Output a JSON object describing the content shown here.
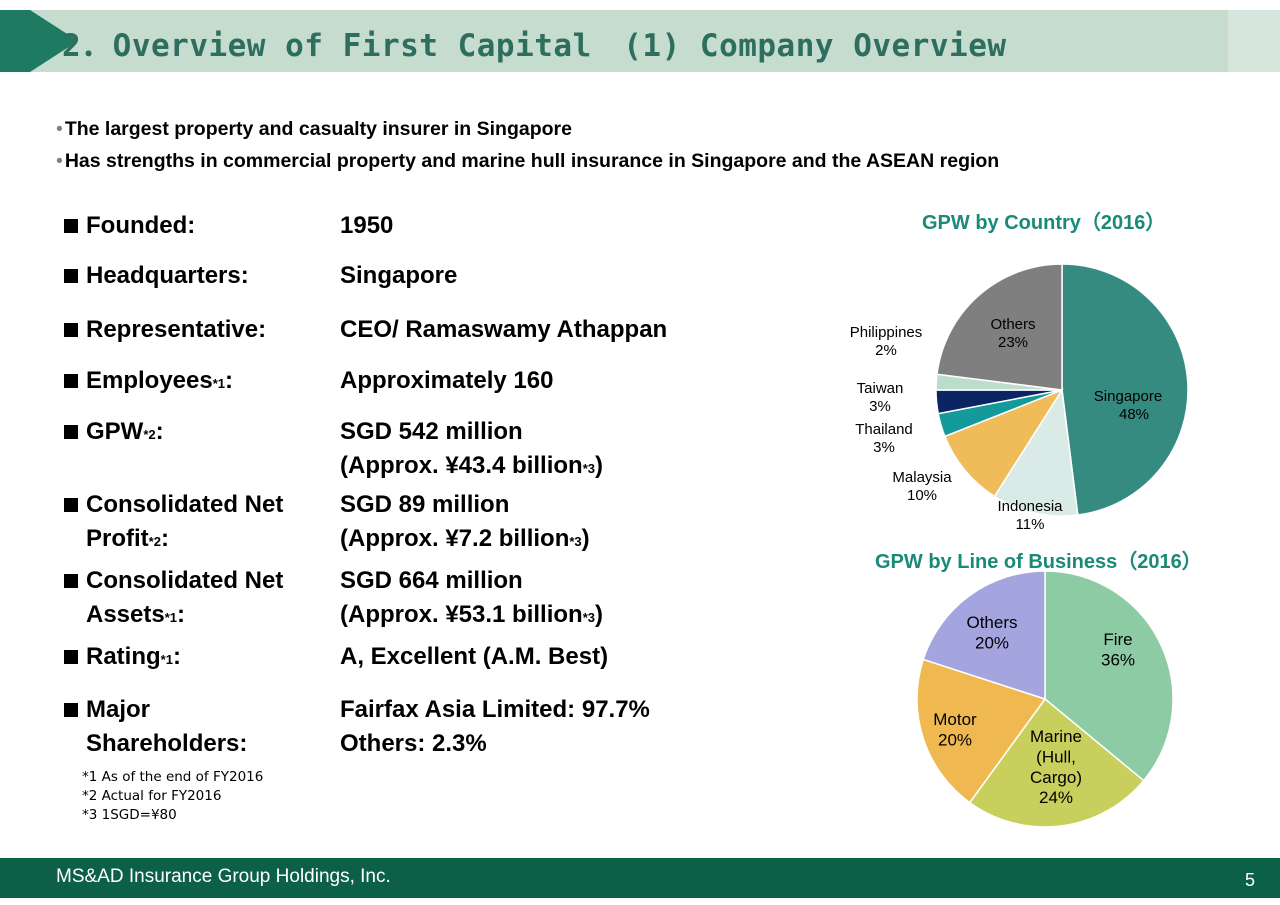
{
  "header": {
    "title": "2．Overview of First Capital　(1) Company Overview"
  },
  "bullets": [
    "The largest property and casualty insurer in Singapore",
    "Has strengths in commercial property and marine hull insurance in Singapore and the ASEAN region"
  ],
  "facts": {
    "founded": {
      "label": "Founded:",
      "value": "1950"
    },
    "hq": {
      "label": "Headquarters:",
      "value": "Singapore"
    },
    "rep": {
      "label": "Representative:",
      "value": "CEO/ Ramaswamy  Athappan"
    },
    "employees": {
      "label": "Employees",
      "sup": "*1",
      "colon": ":",
      "value": "Approximately 160"
    },
    "gpw": {
      "label": "GPW",
      "sup": "*2",
      "colon": ":",
      "value1": "SGD 542 million",
      "value2": "(Approx. ¥43.4 billion",
      "value2_sup": "*3",
      "value2_end": ")"
    },
    "profit": {
      "label1": "Consolidated Net",
      "label2": "Profit",
      "sup": "*2",
      "colon": ":",
      "value1": "SGD 89 million",
      "value2": "(Approx. ¥7.2 billion",
      "value2_sup": "*3",
      "value2_end": ")"
    },
    "assets": {
      "label1": "Consolidated Net",
      "label2": "Assets",
      "sup": "*1",
      "colon": ":",
      "value1": "SGD 664 million",
      "value2": "(Approx. ¥53.1 billion",
      "value2_sup": "*3",
      "value2_end": ")"
    },
    "rating": {
      "label": "Rating",
      "sup": "*1",
      "colon": ":",
      "value": "A, Excellent (A.M. Best)"
    },
    "shareholders": {
      "label1": "Major",
      "label2": "Shareholders:",
      "value1": "Fairfax Asia Limited: 97.7%",
      "value2": "Others: 2.3%"
    }
  },
  "notes": [
    "*1 As of the end of FY2016",
    "*2 Actual for FY2016",
    "*3 1SGD=¥80"
  ],
  "chart_data": [
    {
      "type": "pie",
      "title": "GPW by Country（2016）",
      "slices": [
        {
          "name": "Singapore",
          "value": 48,
          "label": "48%",
          "color": "#368b80"
        },
        {
          "name": "Indonesia",
          "value": 11,
          "label": "11%",
          "color": "#daeae6"
        },
        {
          "name": "Malaysia",
          "value": 10,
          "label": "10%",
          "color": "#f0bc5a"
        },
        {
          "name": "Thailand",
          "value": 3,
          "label": "3%",
          "color": "#149a9a"
        },
        {
          "name": "Taiwan",
          "value": 3,
          "label": "3%",
          "color": "#0a2464"
        },
        {
          "name": "Philippines",
          "value": 2,
          "label": "2%",
          "color": "#bcdccc"
        },
        {
          "name": "Others",
          "value": 23,
          "label": "23%",
          "color": "#7f7f7f"
        }
      ]
    },
    {
      "type": "pie",
      "title": "GPW by Line of Business（2016）",
      "slices": [
        {
          "name": "Fire",
          "value": 36,
          "label": "36%",
          "color": "#8ccba4"
        },
        {
          "name": "Marine\n(Hull,\nCargo)",
          "value": 24,
          "label": "24%",
          "color": "#c8cf5c"
        },
        {
          "name": "Motor",
          "value": 20,
          "label": "20%",
          "color": "#f0b850"
        },
        {
          "name": "Others",
          "value": 20,
          "label": "20%",
          "color": "#a4a4df"
        }
      ]
    }
  ],
  "footer": {
    "company": "MS&AD Insurance Group Holdings, Inc.",
    "page": "5"
  }
}
